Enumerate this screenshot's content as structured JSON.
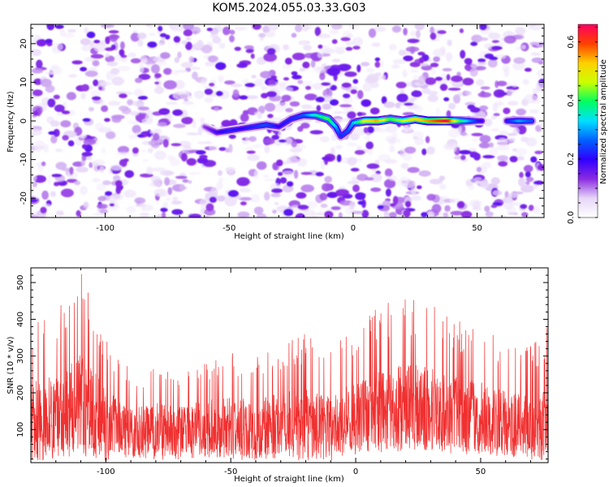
{
  "title": "KOM5.2024.055.03.33.G03",
  "chart_data": [
    {
      "type": "heatmap",
      "xlabel": "Height of straight line (km)",
      "ylabel": "Frequency (Hz)",
      "xlim": [
        -130,
        77
      ],
      "ylim": [
        -25,
        25
      ],
      "xticks": [
        -100,
        -50,
        0,
        50
      ],
      "yticks": [
        -20,
        -10,
        0,
        10,
        20
      ],
      "colorbar": {
        "label": "Normalized spectral amplitude",
        "range": [
          0,
          0.66
        ],
        "ticks": [
          0.0,
          0.2,
          0.4,
          0.6
        ],
        "colors": [
          "#ffffff",
          "#e6d6f7",
          "#8a2be2",
          "#3000ff",
          "#0060ff",
          "#00e0ff",
          "#00ff60",
          "#ccff00",
          "#ffd000",
          "#ff4000",
          "#ff0060"
        ]
      },
      "ridge": [
        {
          "x": -60,
          "y": -1.5,
          "v": 0.12
        },
        {
          "x": -55,
          "y": -3,
          "v": 0.18
        },
        {
          "x": -50,
          "y": -2.5,
          "v": 0.22
        },
        {
          "x": -45,
          "y": -2,
          "v": 0.2
        },
        {
          "x": -40,
          "y": -1.5,
          "v": 0.22
        },
        {
          "x": -35,
          "y": -1,
          "v": 0.25
        },
        {
          "x": -30,
          "y": -1.5,
          "v": 0.2
        },
        {
          "x": -25,
          "y": 0.5,
          "v": 0.22
        },
        {
          "x": -20,
          "y": 1.5,
          "v": 0.25
        },
        {
          "x": -15,
          "y": 1.5,
          "v": 0.35
        },
        {
          "x": -10,
          "y": 0.5,
          "v": 0.42
        },
        {
          "x": -7,
          "y": -1.5,
          "v": 0.32
        },
        {
          "x": -5,
          "y": -4,
          "v": 0.22
        },
        {
          "x": -2,
          "y": -2.5,
          "v": 0.25
        },
        {
          "x": 0,
          "y": -0.5,
          "v": 0.3
        },
        {
          "x": 5,
          "y": 0,
          "v": 0.48
        },
        {
          "x": 10,
          "y": 0,
          "v": 0.55
        },
        {
          "x": 15,
          "y": 0.5,
          "v": 0.4
        },
        {
          "x": 20,
          "y": 0,
          "v": 0.45
        },
        {
          "x": 25,
          "y": 0.5,
          "v": 0.5
        },
        {
          "x": 30,
          "y": 0,
          "v": 0.55
        },
        {
          "x": 35,
          "y": 0,
          "v": 0.6
        },
        {
          "x": 38,
          "y": 0,
          "v": 0.65
        },
        {
          "x": 42,
          "y": 0,
          "v": 0.45
        },
        {
          "x": 47,
          "y": 0,
          "v": 0.3
        },
        {
          "x": 52,
          "y": 0,
          "v": 0.18
        },
        {
          "x": 62,
          "y": 0,
          "v": 0.2
        },
        {
          "x": 67,
          "y": 0,
          "v": 0.3
        },
        {
          "x": 72,
          "y": 0,
          "v": 0.25
        }
      ]
    },
    {
      "type": "line",
      "xlabel": "Height of straight line (km)",
      "ylabel": "SNR (10 * v/v)",
      "xlim": [
        -130,
        77
      ],
      "ylim": [
        10,
        540
      ],
      "xticks": [
        -100,
        -50,
        0,
        50
      ],
      "yticks": [
        100,
        200,
        300,
        400,
        500
      ],
      "color": "#f03030",
      "envelope": [
        {
          "x": -130,
          "low": 30,
          "high": 400
        },
        {
          "x": -120,
          "low": 40,
          "high": 420
        },
        {
          "x": -110,
          "low": 50,
          "high": 540
        },
        {
          "x": -100,
          "low": 30,
          "high": 360
        },
        {
          "x": -90,
          "low": 35,
          "high": 260
        },
        {
          "x": -80,
          "low": 30,
          "high": 290
        },
        {
          "x": -70,
          "low": 30,
          "high": 270
        },
        {
          "x": -60,
          "low": 35,
          "high": 300
        },
        {
          "x": -50,
          "low": 30,
          "high": 320
        },
        {
          "x": -40,
          "low": 30,
          "high": 300
        },
        {
          "x": -30,
          "low": 35,
          "high": 340
        },
        {
          "x": -20,
          "low": 30,
          "high": 360
        },
        {
          "x": -10,
          "low": 30,
          "high": 330
        },
        {
          "x": 0,
          "low": 45,
          "high": 380
        },
        {
          "x": 10,
          "low": 50,
          "high": 440
        },
        {
          "x": 20,
          "low": 60,
          "high": 460
        },
        {
          "x": 30,
          "low": 60,
          "high": 440
        },
        {
          "x": 40,
          "low": 50,
          "high": 400
        },
        {
          "x": 50,
          "low": 45,
          "high": 380
        },
        {
          "x": 60,
          "low": 40,
          "high": 340
        },
        {
          "x": 70,
          "low": 30,
          "high": 330
        },
        {
          "x": 77,
          "low": 30,
          "high": 380
        }
      ]
    }
  ]
}
